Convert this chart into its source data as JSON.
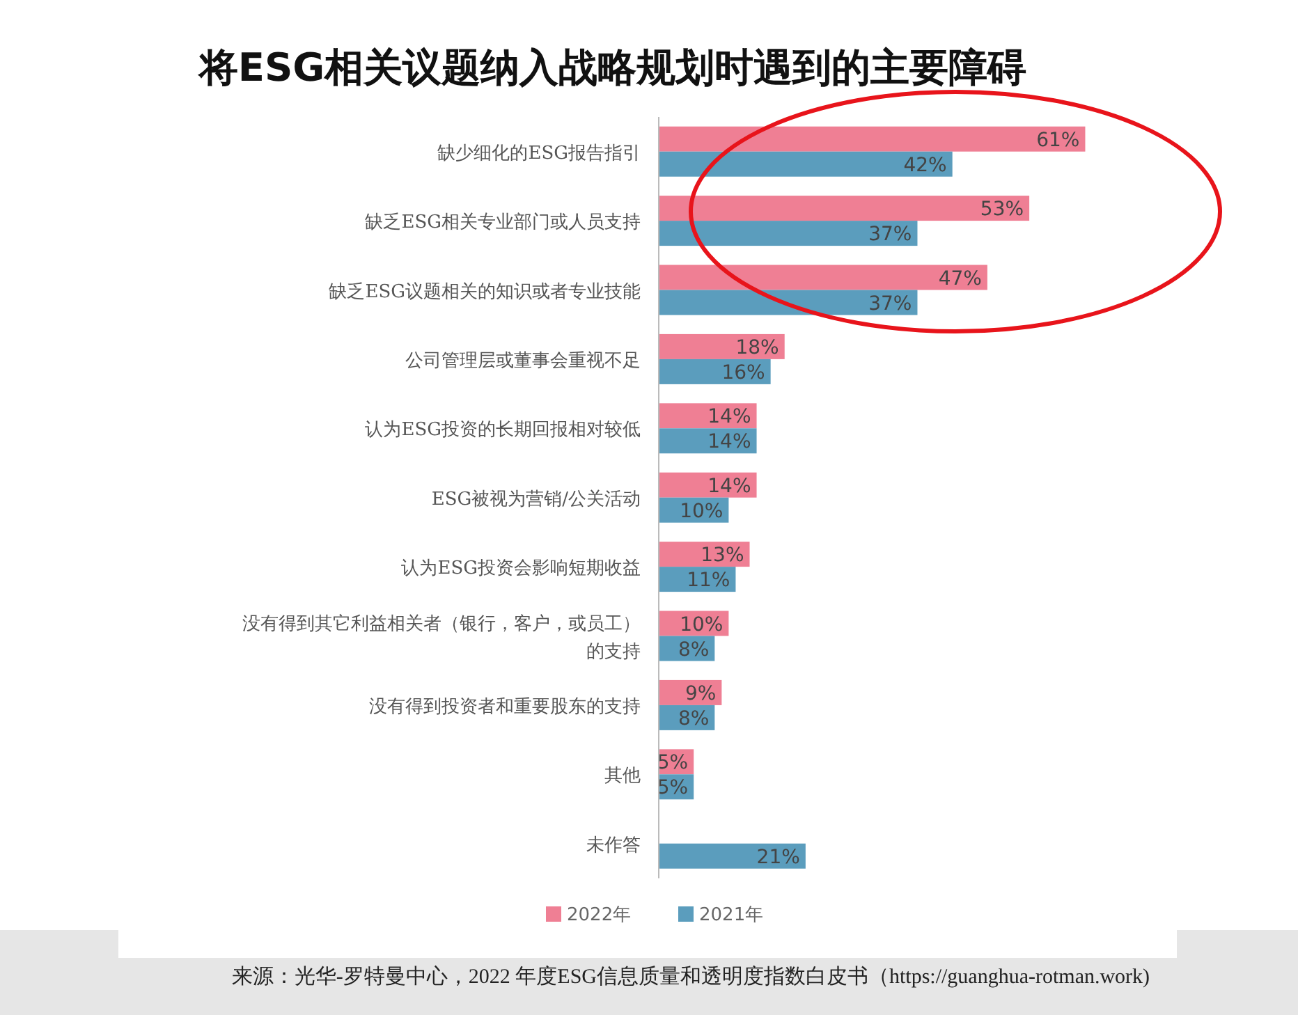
{
  "chart_data": {
    "type": "bar",
    "orientation": "horizontal",
    "title": "将ESG相关议题纳入战略规划时遇到的主要障碍",
    "categories": [
      "缺少细化的ESG报告指引",
      "缺乏ESG相关专业部门或人员支持",
      "缺乏ESG议题相关的知识或者专业技能",
      "公司管理层或董事会重视不足",
      "认为ESG投资的长期回报相对较低",
      "ESG被视为营销/公关活动",
      "认为ESG投资会影响短期收益",
      "没有得到其它利益相关者（银行，客户，或员工）的支持",
      "没有得到投资者和重要股东的支持",
      "其他",
      "未作答"
    ],
    "series": [
      {
        "name": "2022年",
        "color": "#ef7f94",
        "values": [
          61,
          53,
          47,
          18,
          14,
          14,
          13,
          10,
          9,
          5,
          null
        ],
        "value_labels": [
          "61%",
          "53%",
          "47%",
          "18%",
          "14%",
          "14%",
          "13%",
          "10%",
          "9%",
          "5%",
          null
        ]
      },
      {
        "name": "2021年",
        "color": "#5b9dbd",
        "values": [
          42,
          37,
          37,
          16,
          14,
          10,
          11,
          8,
          8,
          5,
          21
        ],
        "value_labels": [
          "42%",
          "37%",
          "37%",
          "16%",
          "14%",
          "10%",
          "11%",
          "8%",
          "8%",
          "5%",
          "21%"
        ]
      }
    ],
    "legend": "bottom",
    "annotations": [
      "来源：光华-罗特曼中心，2022 年度ESG信息质量和透明度指数白皮书（https://guanghua-rotman.work)"
    ]
  }
}
